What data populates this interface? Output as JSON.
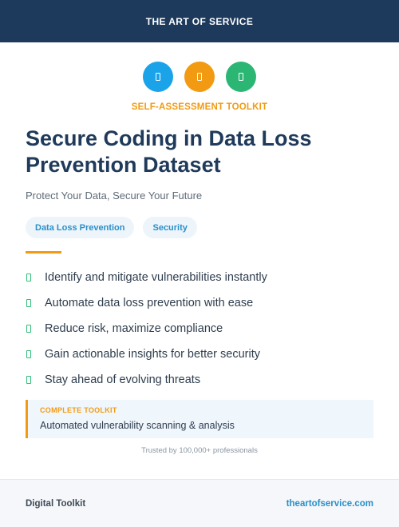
{
  "header": {
    "title": "THE ART OF SERVICE"
  },
  "icons": [
    {
      "name": "shield-icon",
      "color": "#1aa3e8"
    },
    {
      "name": "lock-icon",
      "color": "#f29a12"
    },
    {
      "name": "chart-icon",
      "color": "#2bb673"
    }
  ],
  "kicker": "SELF-ASSESSMENT TOOLKIT",
  "title": "Secure Coding in Data Loss Prevention Dataset",
  "subtitle": "Protect Your Data, Secure Your Future",
  "tags": [
    "Data Loss Prevention",
    "Security"
  ],
  "features": [
    "Identify and mitigate vulnerabilities instantly",
    "Automate data loss prevention with ease",
    "Reduce risk, maximize compliance",
    "Gain actionable insights for better security",
    "Stay ahead of evolving threats"
  ],
  "callout": {
    "label": "COMPLETE TOOLKIT",
    "text": "Automated vulnerability scanning & analysis"
  },
  "trusted": "Trusted by 100,000+ professionals",
  "footer": {
    "left": "Digital Toolkit",
    "right": "theartofservice.com"
  },
  "colors": {
    "navy": "#1d3a5c",
    "accent": "#f29a12",
    "blue": "#2a8fc9",
    "green": "#2fbf77"
  }
}
